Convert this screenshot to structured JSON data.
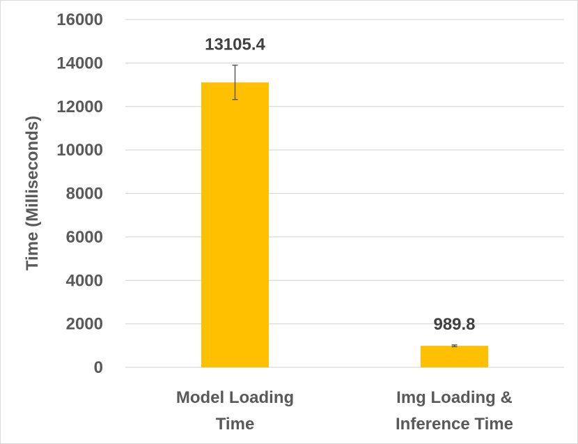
{
  "chart_data": {
    "type": "bar",
    "categories": [
      [
        "Model Loading",
        "Time"
      ],
      [
        "Img Loading &",
        "Inference Time"
      ]
    ],
    "values": [
      13105.4,
      989.8
    ],
    "data_labels": [
      "13105.4",
      "989.8"
    ],
    "error_bars": [
      {
        "low": 12320,
        "high": 13900
      },
      {
        "low": 950,
        "high": 1030
      }
    ],
    "ylabel": "Time (Milliseconds)",
    "xlabel": "",
    "ylim": [
      0,
      16000
    ],
    "yticks": [
      "0",
      "2000",
      "4000",
      "6000",
      "8000",
      "10000",
      "12000",
      "14000",
      "16000"
    ],
    "grid": true,
    "legend": "none",
    "colors": {
      "bar": "#FFC000",
      "grid": "#d9d9d9",
      "error_bar": "#595959",
      "axis_text": "#595959",
      "data_label": "#404040"
    }
  }
}
